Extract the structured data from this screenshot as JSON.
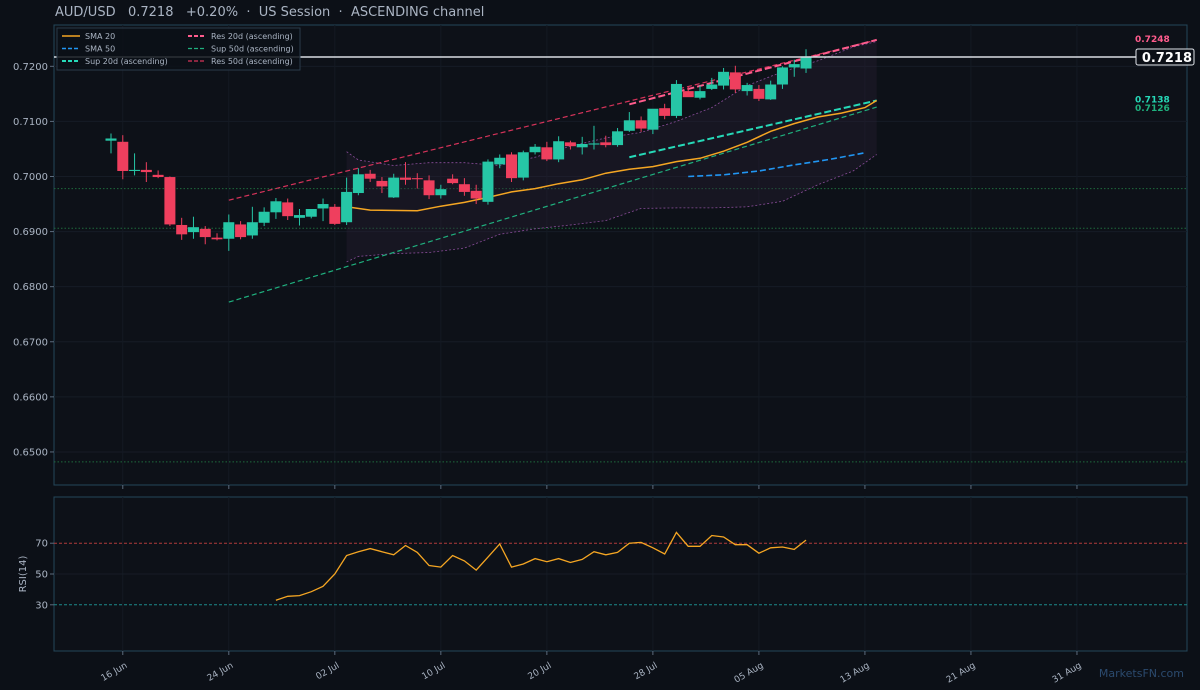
{
  "header": {
    "symbol": "AUD/USD",
    "price": "0.7218",
    "change": "+0.20%",
    "session": "US Session",
    "pattern": "ASCENDING channel",
    "separator": "·"
  },
  "watermark": "MarketsFN.com",
  "colors": {
    "background": "#0c1017",
    "up": "#26c6a6",
    "down": "#ef3f5e",
    "sma20": "#f5a623",
    "sma50": "#2196f3",
    "sup20": "#26d9b8",
    "res20": "#ff5c8d",
    "sup50": "#1fb07e",
    "res50": "#d6335a",
    "rsi": "#f5a623",
    "bands": "#8a4d9a"
  },
  "chart_data": [
    {
      "type": "candlestick",
      "title": "AUD/USD 0.7218 +0.20% · US Session · ASCENDING channel",
      "ylim": [
        0.644,
        0.7275
      ],
      "y_ticks": [
        "0.6500",
        "0.6600",
        "0.6700",
        "0.6800",
        "0.6900",
        "0.7000",
        "0.7100",
        "0.7200"
      ],
      "x_ticks": [
        "16 Jun",
        "24 Jun",
        "02 Jul",
        "10 Jul",
        "20 Jul",
        "28 Jul",
        "05 Aug",
        "13 Aug",
        "21 Aug",
        "31 Aug"
      ],
      "x_tick_positions": [
        1,
        10,
        19,
        28,
        37,
        46,
        55,
        64,
        73,
        82
      ],
      "legend": {
        "position": "top-left",
        "entries": [
          "SMA 20",
          "SMA 50",
          "Sup 20d (ascending)",
          "Res 20d (ascending)",
          "Sup 50d (ascending)",
          "Res 50d (ascending)"
        ]
      },
      "candles": [
        {
          "x": 0,
          "o": 0.7065,
          "h": 0.7078,
          "l": 0.7042,
          "c": 0.7069
        },
        {
          "x": 1,
          "o": 0.7063,
          "h": 0.7075,
          "l": 0.6995,
          "c": 0.701
        },
        {
          "x": 2,
          "o": 0.701,
          "h": 0.7042,
          "l": 0.7002,
          "c": 0.7012
        },
        {
          "x": 3,
          "o": 0.7012,
          "h": 0.7026,
          "l": 0.699,
          "c": 0.7008
        },
        {
          "x": 4,
          "o": 0.7003,
          "h": 0.7011,
          "l": 0.6997,
          "c": 0.6999
        },
        {
          "x": 5,
          "o": 0.6999,
          "h": 0.7,
          "l": 0.691,
          "c": 0.6913
        },
        {
          "x": 6,
          "o": 0.6912,
          "h": 0.6925,
          "l": 0.6885,
          "c": 0.6895
        },
        {
          "x": 7,
          "o": 0.6899,
          "h": 0.6927,
          "l": 0.6887,
          "c": 0.6908
        },
        {
          "x": 8,
          "o": 0.6905,
          "h": 0.691,
          "l": 0.6877,
          "c": 0.689
        },
        {
          "x": 9,
          "o": 0.6889,
          "h": 0.6897,
          "l": 0.6884,
          "c": 0.6886
        },
        {
          "x": 10,
          "o": 0.6887,
          "h": 0.6931,
          "l": 0.6865,
          "c": 0.6917
        },
        {
          "x": 11,
          "o": 0.6913,
          "h": 0.6919,
          "l": 0.6886,
          "c": 0.689
        },
        {
          "x": 12,
          "o": 0.6893,
          "h": 0.6945,
          "l": 0.6887,
          "c": 0.6917
        },
        {
          "x": 13,
          "o": 0.6916,
          "h": 0.6944,
          "l": 0.691,
          "c": 0.6936
        },
        {
          "x": 14,
          "o": 0.6935,
          "h": 0.6961,
          "l": 0.6923,
          "c": 0.6955
        },
        {
          "x": 15,
          "o": 0.6953,
          "h": 0.696,
          "l": 0.6921,
          "c": 0.6928
        },
        {
          "x": 16,
          "o": 0.6925,
          "h": 0.6941,
          "l": 0.6911,
          "c": 0.693
        },
        {
          "x": 17,
          "o": 0.6927,
          "h": 0.694,
          "l": 0.6924,
          "c": 0.6941
        },
        {
          "x": 18,
          "o": 0.6942,
          "h": 0.696,
          "l": 0.6919,
          "c": 0.695
        },
        {
          "x": 19,
          "o": 0.6945,
          "h": 0.695,
          "l": 0.6912,
          "c": 0.6914
        },
        {
          "x": 20,
          "o": 0.6917,
          "h": 0.6998,
          "l": 0.6912,
          "c": 0.6972
        },
        {
          "x": 21,
          "o": 0.697,
          "h": 0.7015,
          "l": 0.6966,
          "c": 0.7004
        },
        {
          "x": 22,
          "o": 0.7005,
          "h": 0.7012,
          "l": 0.699,
          "c": 0.6996
        },
        {
          "x": 23,
          "o": 0.6992,
          "h": 0.6999,
          "l": 0.697,
          "c": 0.6982
        },
        {
          "x": 24,
          "o": 0.6962,
          "h": 0.7005,
          "l": 0.6961,
          "c": 0.6998
        },
        {
          "x": 25,
          "o": 0.6998,
          "h": 0.7026,
          "l": 0.6985,
          "c": 0.6994
        },
        {
          "x": 26,
          "o": 0.6997,
          "h": 0.7006,
          "l": 0.6978,
          "c": 0.6995
        },
        {
          "x": 27,
          "o": 0.6993,
          "h": 0.7002,
          "l": 0.6959,
          "c": 0.6966
        },
        {
          "x": 28,
          "o": 0.6966,
          "h": 0.6985,
          "l": 0.696,
          "c": 0.6977
        },
        {
          "x": 29,
          "o": 0.6996,
          "h": 0.7004,
          "l": 0.6986,
          "c": 0.6988
        },
        {
          "x": 30,
          "o": 0.6986,
          "h": 0.6997,
          "l": 0.6965,
          "c": 0.6972
        },
        {
          "x": 31,
          "o": 0.6974,
          "h": 0.6985,
          "l": 0.695,
          "c": 0.696
        },
        {
          "x": 32,
          "o": 0.6954,
          "h": 0.7031,
          "l": 0.6949,
          "c": 0.7027
        },
        {
          "x": 33,
          "o": 0.7022,
          "h": 0.704,
          "l": 0.7015,
          "c": 0.7034
        },
        {
          "x": 34,
          "o": 0.704,
          "h": 0.7044,
          "l": 0.699,
          "c": 0.6997
        },
        {
          "x": 35,
          "o": 0.6998,
          "h": 0.7047,
          "l": 0.6993,
          "c": 0.7044
        },
        {
          "x": 36,
          "o": 0.7044,
          "h": 0.7059,
          "l": 0.704,
          "c": 0.7054
        },
        {
          "x": 37,
          "o": 0.7053,
          "h": 0.7063,
          "l": 0.7028,
          "c": 0.7031
        },
        {
          "x": 38,
          "o": 0.7031,
          "h": 0.7073,
          "l": 0.7026,
          "c": 0.7064
        },
        {
          "x": 39,
          "o": 0.7062,
          "h": 0.7065,
          "l": 0.7049,
          "c": 0.7055
        },
        {
          "x": 40,
          "o": 0.7053,
          "h": 0.7072,
          "l": 0.704,
          "c": 0.7059
        },
        {
          "x": 41,
          "o": 0.7058,
          "h": 0.7092,
          "l": 0.7049,
          "c": 0.706
        },
        {
          "x": 42,
          "o": 0.7062,
          "h": 0.7074,
          "l": 0.7053,
          "c": 0.7057
        },
        {
          "x": 43,
          "o": 0.7057,
          "h": 0.7088,
          "l": 0.7054,
          "c": 0.7082
        },
        {
          "x": 44,
          "o": 0.7083,
          "h": 0.7117,
          "l": 0.7081,
          "c": 0.7102
        },
        {
          "x": 45,
          "o": 0.7102,
          "h": 0.7109,
          "l": 0.7081,
          "c": 0.7087
        },
        {
          "x": 46,
          "o": 0.7085,
          "h": 0.7117,
          "l": 0.7077,
          "c": 0.7123
        },
        {
          "x": 47,
          "o": 0.7124,
          "h": 0.7132,
          "l": 0.7104,
          "c": 0.711
        },
        {
          "x": 48,
          "o": 0.711,
          "h": 0.7175,
          "l": 0.7106,
          "c": 0.7168
        },
        {
          "x": 49,
          "o": 0.7155,
          "h": 0.7163,
          "l": 0.7145,
          "c": 0.7144
        },
        {
          "x": 50,
          "o": 0.7143,
          "h": 0.7165,
          "l": 0.714,
          "c": 0.7155
        },
        {
          "x": 51,
          "o": 0.7159,
          "h": 0.7179,
          "l": 0.7157,
          "c": 0.7167
        },
        {
          "x": 52,
          "o": 0.7165,
          "h": 0.7197,
          "l": 0.7158,
          "c": 0.719
        },
        {
          "x": 53,
          "o": 0.7189,
          "h": 0.7201,
          "l": 0.7152,
          "c": 0.7158
        },
        {
          "x": 54,
          "o": 0.7155,
          "h": 0.717,
          "l": 0.7147,
          "c": 0.7166
        },
        {
          "x": 55,
          "o": 0.7159,
          "h": 0.7166,
          "l": 0.7137,
          "c": 0.7141
        },
        {
          "x": 56,
          "o": 0.714,
          "h": 0.7174,
          "l": 0.7139,
          "c": 0.7167
        },
        {
          "x": 57,
          "o": 0.7167,
          "h": 0.72,
          "l": 0.7159,
          "c": 0.7198
        },
        {
          "x": 58,
          "o": 0.7198,
          "h": 0.7212,
          "l": 0.7181,
          "c": 0.7204
        },
        {
          "x": 59,
          "o": 0.7196,
          "h": 0.7231,
          "l": 0.7188,
          "c": 0.7218
        }
      ],
      "sma20": [
        {
          "x": 20,
          "y": 0.6945
        },
        {
          "x": 22,
          "y": 0.6939
        },
        {
          "x": 26,
          "y": 0.6938
        },
        {
          "x": 28,
          "y": 0.6946
        },
        {
          "x": 30,
          "y": 0.6953
        },
        {
          "x": 32,
          "y": 0.6962
        },
        {
          "x": 34,
          "y": 0.6972
        },
        {
          "x": 36,
          "y": 0.6978
        },
        {
          "x": 38,
          "y": 0.6987
        },
        {
          "x": 40,
          "y": 0.6994
        },
        {
          "x": 42,
          "y": 0.7006
        },
        {
          "x": 44,
          "y": 0.7013
        },
        {
          "x": 46,
          "y": 0.7018
        },
        {
          "x": 48,
          "y": 0.7027
        },
        {
          "x": 50,
          "y": 0.7033
        },
        {
          "x": 52,
          "y": 0.7046
        },
        {
          "x": 54,
          "y": 0.7062
        },
        {
          "x": 56,
          "y": 0.7082
        },
        {
          "x": 58,
          "y": 0.7096
        },
        {
          "x": 60,
          "y": 0.7108
        },
        {
          "x": 62,
          "y": 0.7115
        },
        {
          "x": 64,
          "y": 0.7125
        },
        {
          "x": 65,
          "y": 0.7138
        }
      ],
      "sma50": [
        {
          "x": 49,
          "y": 0.7
        },
        {
          "x": 52,
          "y": 0.7003
        },
        {
          "x": 55,
          "y": 0.701
        },
        {
          "x": 58,
          "y": 0.7021
        },
        {
          "x": 61,
          "y": 0.7031
        },
        {
          "x": 64,
          "y": 0.7043
        }
      ],
      "bands_upper": [
        {
          "x": 20,
          "y": 0.7045
        },
        {
          "x": 21,
          "y": 0.703
        },
        {
          "x": 24,
          "y": 0.702
        },
        {
          "x": 27,
          "y": 0.7025
        },
        {
          "x": 30,
          "y": 0.7025
        },
        {
          "x": 33,
          "y": 0.702
        },
        {
          "x": 36,
          "y": 0.7035
        },
        {
          "x": 39,
          "y": 0.7055
        },
        {
          "x": 42,
          "y": 0.707
        },
        {
          "x": 45,
          "y": 0.708
        },
        {
          "x": 48,
          "y": 0.71
        },
        {
          "x": 51,
          "y": 0.7125
        },
        {
          "x": 54,
          "y": 0.7165
        },
        {
          "x": 57,
          "y": 0.719
        },
        {
          "x": 60,
          "y": 0.721
        },
        {
          "x": 63,
          "y": 0.7235
        },
        {
          "x": 65,
          "y": 0.7245
        }
      ],
      "bands_lower": [
        {
          "x": 20,
          "y": 0.6845
        },
        {
          "x": 21,
          "y": 0.6855
        },
        {
          "x": 24,
          "y": 0.686
        },
        {
          "x": 27,
          "y": 0.6862
        },
        {
          "x": 30,
          "y": 0.687
        },
        {
          "x": 33,
          "y": 0.6895
        },
        {
          "x": 36,
          "y": 0.6905
        },
        {
          "x": 39,
          "y": 0.6912
        },
        {
          "x": 42,
          "y": 0.692
        },
        {
          "x": 45,
          "y": 0.6942
        },
        {
          "x": 48,
          "y": 0.6943
        },
        {
          "x": 51,
          "y": 0.6943
        },
        {
          "x": 54,
          "y": 0.6945
        },
        {
          "x": 57,
          "y": 0.6955
        },
        {
          "x": 60,
          "y": 0.6985
        },
        {
          "x": 63,
          "y": 0.701
        },
        {
          "x": 65,
          "y": 0.704
        }
      ],
      "trendlines": [
        {
          "name": "Res 50d (ascending)",
          "x1": 10,
          "y1": 0.6957,
          "x2": 65,
          "y2": 0.7248
        },
        {
          "name": "Sup 50d (ascending)",
          "x1": 10,
          "y1": 0.6772,
          "x2": 65,
          "y2": 0.7126
        },
        {
          "name": "Res 20d (ascending)",
          "x1": 44,
          "y1": 0.7131,
          "x2": 65,
          "y2": 0.7248
        },
        {
          "name": "Sup 20d (ascending)",
          "x1": 44,
          "y1": 0.7035,
          "x2": 65,
          "y2": 0.7138
        }
      ],
      "horizontal_levels": [
        0.6978,
        0.6906,
        0.6482
      ],
      "last_price_line": 0.7217,
      "right_labels": [
        {
          "text": "0.7248",
          "y": 0.7248
        },
        {
          "text": "0.7218",
          "y": 0.7218
        },
        {
          "text": "0.7138",
          "y": 0.7138
        },
        {
          "text": "0.7126",
          "y": 0.7126
        }
      ]
    },
    {
      "type": "line",
      "ylabel": "RSI(14)",
      "ylim": [
        0,
        100
      ],
      "y_ticks": [
        "70",
        "50",
        "30"
      ],
      "reference_lines": [
        70,
        30
      ],
      "series": [
        {
          "name": "RSI(14)",
          "points": [
            {
              "x": 14,
              "y": 33
            },
            {
              "x": 15,
              "y": 35.5
            },
            {
              "x": 16,
              "y": 36
            },
            {
              "x": 17,
              "y": 38.5
            },
            {
              "x": 18,
              "y": 42
            },
            {
              "x": 19,
              "y": 50
            },
            {
              "x": 20,
              "y": 62
            },
            {
              "x": 21,
              "y": 64.5
            },
            {
              "x": 22,
              "y": 66.5
            },
            {
              "x": 23,
              "y": 64.5
            },
            {
              "x": 24,
              "y": 62.5
            },
            {
              "x": 25,
              "y": 68.5
            },
            {
              "x": 26,
              "y": 64
            },
            {
              "x": 27,
              "y": 55.5
            },
            {
              "x": 28,
              "y": 54.5
            },
            {
              "x": 29,
              "y": 62
            },
            {
              "x": 30,
              "y": 58.5
            },
            {
              "x": 31,
              "y": 52.5
            },
            {
              "x": 32,
              "y": 61
            },
            {
              "x": 33,
              "y": 69.5
            },
            {
              "x": 34,
              "y": 54.5
            },
            {
              "x": 35,
              "y": 56.5
            },
            {
              "x": 36,
              "y": 60
            },
            {
              "x": 37,
              "y": 58
            },
            {
              "x": 38,
              "y": 60
            },
            {
              "x": 39,
              "y": 57.5
            },
            {
              "x": 40,
              "y": 59.5
            },
            {
              "x": 41,
              "y": 64.5
            },
            {
              "x": 42,
              "y": 62.5
            },
            {
              "x": 43,
              "y": 64
            },
            {
              "x": 44,
              "y": 70
            },
            {
              "x": 45,
              "y": 70.5
            },
            {
              "x": 46,
              "y": 67
            },
            {
              "x": 47,
              "y": 63
            },
            {
              "x": 48,
              "y": 77
            },
            {
              "x": 49,
              "y": 68
            },
            {
              "x": 50,
              "y": 68
            },
            {
              "x": 51,
              "y": 75
            },
            {
              "x": 52,
              "y": 74
            },
            {
              "x": 53,
              "y": 69
            },
            {
              "x": 54,
              "y": 69
            },
            {
              "x": 55,
              "y": 63.5
            },
            {
              "x": 56,
              "y": 67
            },
            {
              "x": 57,
              "y": 67.5
            },
            {
              "x": 58,
              "y": 66
            },
            {
              "x": 59,
              "y": 72
            }
          ]
        }
      ]
    }
  ]
}
